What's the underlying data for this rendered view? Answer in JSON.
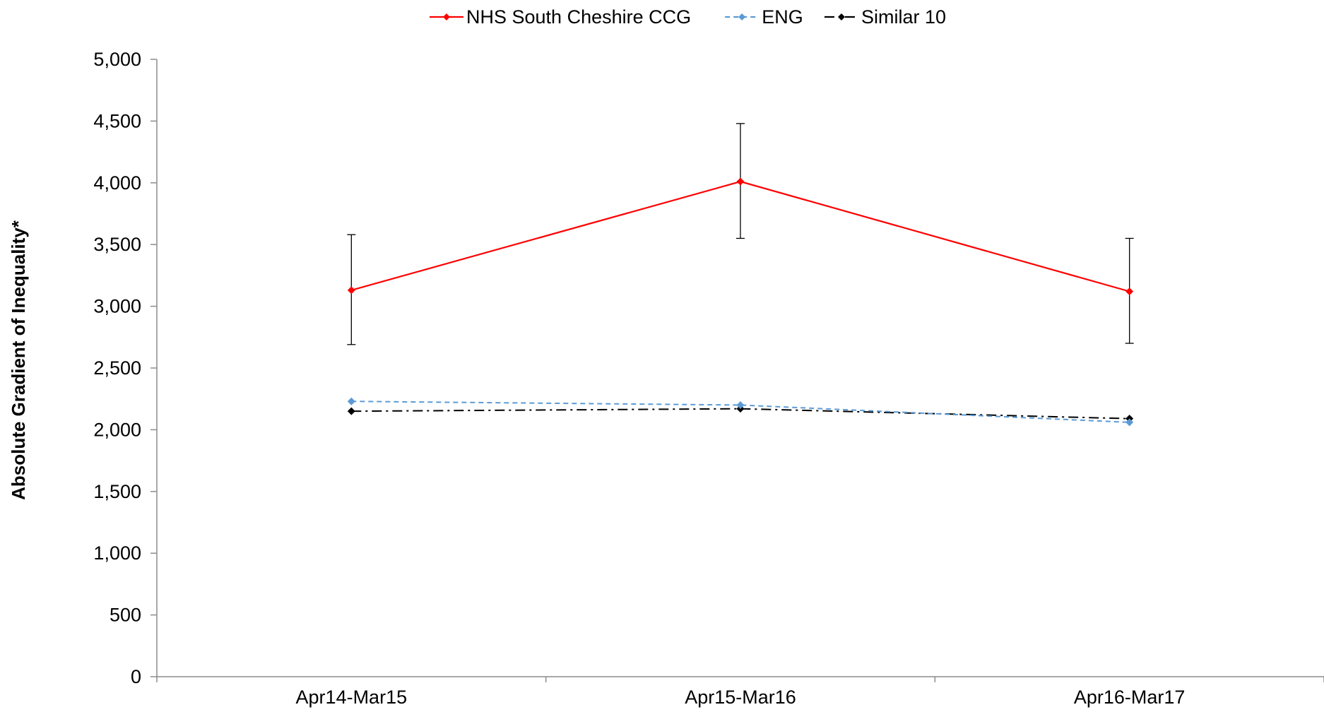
{
  "chart_data": {
    "type": "line",
    "title": "",
    "xlabel": "",
    "ylabel": "Absolute Gradient of Inequality*",
    "categories": [
      "Apr14-Mar15",
      "Apr15-Mar16",
      "Apr16-Mar17"
    ],
    "ylim": [
      0,
      5000
    ],
    "yticks": [
      0,
      500,
      1000,
      1500,
      2000,
      2500,
      3000,
      3500,
      4000,
      4500,
      5000
    ],
    "ytick_labels": [
      "0",
      "500",
      "1,000",
      "1,500",
      "2,000",
      "2,500",
      "3,000",
      "3,500",
      "4,000",
      "4,500",
      "5,000"
    ],
    "grid": false,
    "legend_position": "top-center",
    "series": [
      {
        "name": "NHS South Cheshire CCG",
        "color": "#ff0000",
        "line_style": "solid",
        "marker": "diamond",
        "values": [
          3130,
          4010,
          3120
        ],
        "error_low": [
          2690,
          3550,
          2700
        ],
        "error_high": [
          3580,
          4480,
          3550
        ]
      },
      {
        "name": "ENG",
        "color": "#5b9bd5",
        "line_style": "dashed",
        "marker": "diamond",
        "values": [
          2230,
          2200,
          2060
        ]
      },
      {
        "name": "Similar 10",
        "color": "#000000",
        "line_style": "dash-dot",
        "marker": "diamond",
        "values": [
          2150,
          2170,
          2090
        ]
      }
    ]
  }
}
